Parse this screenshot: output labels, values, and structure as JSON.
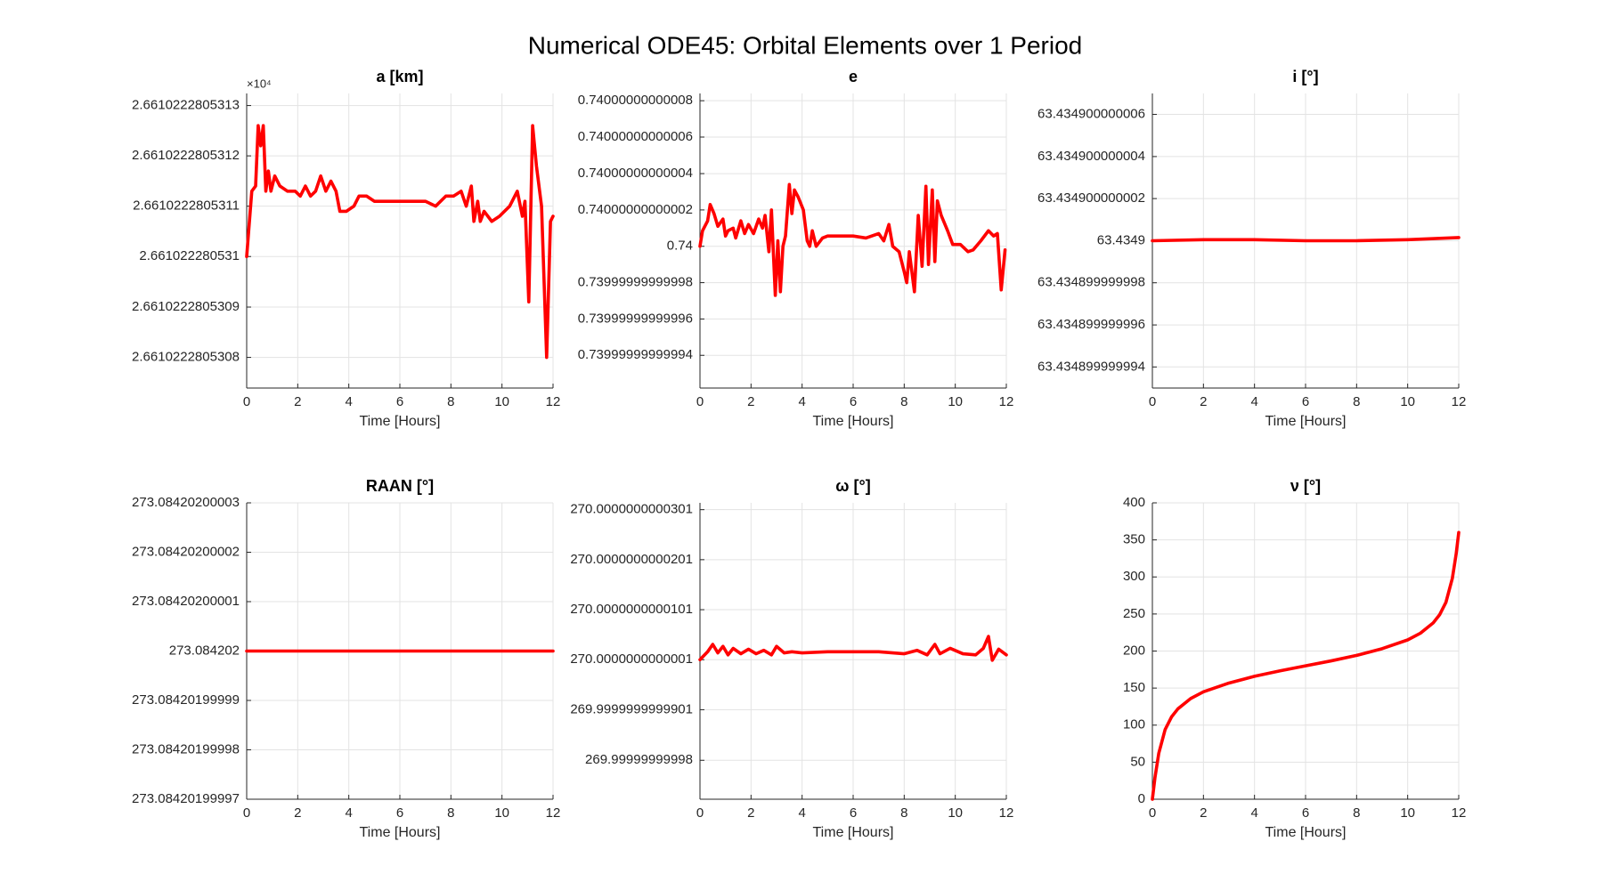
{
  "title": "Numerical ODE45: Orbital Elements over 1 Period",
  "chart_data": [
    {
      "type": "line",
      "title": "a [km]",
      "x_label": "Time [Hours]",
      "y_exponent": "×10⁴",
      "color": "#ff0000",
      "grid": true,
      "xlim": [
        0,
        12
      ],
      "xticks": [
        0,
        2,
        4,
        6,
        8,
        10,
        12
      ],
      "ylim": [
        2.661022280530739,
        2.661022280531324
      ],
      "yticks": [
        2.6610222805308,
        2.6610222805309,
        2.661022280531,
        2.6610222805311,
        2.6610222805312,
        2.6610222805313
      ],
      "x": [
        0,
        0.2,
        0.35,
        0.45,
        0.55,
        0.65,
        0.75,
        0.85,
        0.95,
        1.1,
        1.3,
        1.6,
        1.9,
        2.1,
        2.3,
        2.5,
        2.7,
        2.9,
        3.1,
        3.3,
        3.5,
        3.65,
        3.9,
        4.2,
        4.4,
        4.7,
        5,
        5.5,
        6,
        6.5,
        7,
        7.4,
        7.8,
        8.1,
        8.4,
        8.6,
        8.8,
        8.9,
        9.05,
        9.15,
        9.3,
        9.6,
        9.9,
        10.3,
        10.6,
        10.8,
        10.9,
        11.05,
        11.2,
        11.35,
        11.55,
        11.75,
        11.9,
        12
      ],
      "values": [
        2.661022280531,
        2.66102228053113,
        2.66102228053114,
        2.66102228053126,
        2.66102228053122,
        2.66102228053126,
        2.66102228053113,
        2.66102228053117,
        2.66102228053113,
        2.66102228053116,
        2.66102228053114,
        2.66102228053113,
        2.66102228053113,
        2.66102228053112,
        2.66102228053114,
        2.66102228053112,
        2.66102228053113,
        2.66102228053116,
        2.66102228053113,
        2.66102228053115,
        2.66102228053113,
        2.66102228053109,
        2.66102228053109,
        2.6610222805311,
        2.66102228053112,
        2.66102228053112,
        2.66102228053111,
        2.66102228053111,
        2.66102228053111,
        2.66102228053111,
        2.66102228053111,
        2.6610222805311,
        2.66102228053112,
        2.66102228053112,
        2.66102228053113,
        2.6610222805311,
        2.66102228053114,
        2.66102228053107,
        2.66102228053111,
        2.66102228053107,
        2.66102228053109,
        2.66102228053107,
        2.66102228053108,
        2.6610222805311,
        2.66102228053113,
        2.66102228053108,
        2.66102228053111,
        2.66102228053091,
        2.66102228053126,
        2.66102228053118,
        2.6610222805311,
        2.6610222805308,
        2.66102228053107,
        2.66102228053108
      ]
    },
    {
      "type": "line",
      "title": "e",
      "x_label": "Time [Hours]",
      "color": "#ff0000",
      "grid": true,
      "xlim": [
        0,
        12
      ],
      "xticks": [
        0,
        2,
        4,
        6,
        8,
        10,
        12
      ],
      "ylim": [
        0.739999999999922,
        0.740000000000084
      ],
      "yticks": [
        0.73999999999994,
        0.73999999999996,
        0.73999999999998,
        0.74,
        0.74000000000002,
        0.74000000000004,
        0.74000000000006,
        0.74000000000008
      ],
      "x": [
        0,
        0.1,
        0.3,
        0.4,
        0.55,
        0.7,
        0.9,
        1,
        1.1,
        1.3,
        1.4,
        1.6,
        1.75,
        1.9,
        2.1,
        2.3,
        2.45,
        2.55,
        2.7,
        2.8,
        2.95,
        3.05,
        3.15,
        3.25,
        3.35,
        3.5,
        3.6,
        3.7,
        3.85,
        4.05,
        4.2,
        4.3,
        4.4,
        4.55,
        4.8,
        5,
        5.5,
        6,
        6.5,
        7,
        7.2,
        7.4,
        7.55,
        7.8,
        8,
        8.1,
        8.2,
        8.4,
        8.55,
        8.7,
        8.85,
        8.95,
        9.1,
        9.2,
        9.3,
        9.45,
        9.7,
        9.9,
        10.2,
        10.5,
        10.7,
        11,
        11.3,
        11.5,
        11.65,
        11.8,
        11.95
      ],
      "values": [
        0.74,
        0.7400000000000085,
        0.740000000000014,
        0.740000000000023,
        0.740000000000018,
        0.740000000000011,
        0.740000000000015,
        0.7400000000000057,
        0.7400000000000085,
        0.74000000000001,
        0.7400000000000045,
        0.740000000000014,
        0.740000000000007,
        0.740000000000012,
        0.740000000000007,
        0.740000000000015,
        0.74000000000001,
        0.740000000000017,
        0.739999999999997,
        0.74000000000002,
        0.739999999999973,
        0.740000000000003,
        0.739999999999975,
        0.74,
        0.7400000000000057,
        0.740000000000034,
        0.740000000000018,
        0.740000000000031,
        0.740000000000027,
        0.74000000000002,
        0.740000000000003,
        0.74,
        0.7400000000000085,
        0.74,
        0.7400000000000045,
        0.7400000000000057,
        0.7400000000000057,
        0.7400000000000057,
        0.7400000000000045,
        0.740000000000007,
        0.740000000000003,
        0.740000000000012,
        0.74,
        0.739999999999997,
        0.739999999999986,
        0.73999999999998,
        0.739999999999997,
        0.739999999999975,
        0.740000000000017,
        0.739999999999989,
        0.740000000000033,
        0.73999999999999,
        0.740000000000031,
        0.7399999999999916,
        0.740000000000025,
        0.740000000000017,
        0.7400000000000085,
        0.740000000000001,
        0.740000000000001,
        0.739999999999997,
        0.739999999999998,
        0.740000000000003,
        0.7400000000000085,
        0.7400000000000057,
        0.740000000000007,
        0.739999999999976,
        0.739999999999998
      ]
    },
    {
      "type": "line",
      "title": "i [°]",
      "x_label": "Time [Hours]",
      "color": "#ff0000",
      "grid": true,
      "xlim": [
        0,
        12
      ],
      "xticks": [
        0,
        2,
        4,
        6,
        8,
        10,
        12
      ],
      "ylim": [
        63.434899999993,
        63.434900000007
      ],
      "yticks": [
        63.434899999994,
        63.434899999996,
        63.434899999998,
        63.4349,
        63.434900000002,
        63.434900000004,
        63.434900000006
      ],
      "x": [
        0,
        2,
        4,
        6,
        8,
        10,
        12
      ],
      "values": [
        63.4349,
        63.43490000000005,
        63.43490000000005,
        63.4349,
        63.4349,
        63.43490000000005,
        63.43490000000015
      ]
    },
    {
      "type": "line",
      "title": "RAAN [°]",
      "x_label": "Time [Hours]",
      "color": "#ff0000",
      "grid": true,
      "xlim": [
        0,
        12
      ],
      "xticks": [
        0,
        2,
        4,
        6,
        8,
        10,
        12
      ],
      "ylim": [
        273.08420199997,
        273.08420200003
      ],
      "yticks": [
        273.08420199997,
        273.08420199998,
        273.08420199999,
        273.084202,
        273.08420200001,
        273.08420200002,
        273.08420200003
      ],
      "x": [
        0,
        4,
        8,
        12
      ],
      "values": [
        273.084202,
        273.084202,
        273.084202,
        273.084202
      ]
    },
    {
      "type": "line",
      "title": "ω [°]",
      "x_label": "Time [Hours]",
      "color": "#ff0000",
      "grid": true,
      "xlim": [
        0,
        12
      ],
      "xticks": [
        0,
        2,
        4,
        6,
        8,
        10,
        12
      ],
      "ylim": [
        269.9999999999722,
        270.0000000000315
      ],
      "yticks": [
        269.99999999998,
        269.9999999999901,
        270.0000000000001,
        270.0000000000101,
        270.0000000000201,
        270.0000000000301
      ],
      "x": [
        0,
        0.3,
        0.5,
        0.7,
        0.9,
        1.1,
        1.3,
        1.6,
        1.9,
        2.2,
        2.5,
        2.8,
        3,
        3.3,
        3.6,
        4,
        5,
        6,
        7,
        8,
        8.5,
        8.9,
        9.2,
        9.4,
        9.8,
        10.3,
        10.8,
        11.1,
        11.3,
        11.45,
        11.7,
        12
      ],
      "values": [
        270.0000000000001,
        270.0000000000017,
        270.0000000000032,
        270.0000000000015,
        270.0000000000028,
        270.0000000000011,
        270.0000000000024,
        270.0000000000013,
        270.0000000000022,
        270.0000000000013,
        270.000000000002,
        270.0000000000011,
        270.0000000000028,
        270.0000000000015,
        270.0000000000017,
        270.0000000000015,
        270.0000000000017,
        270.0000000000017,
        270.0000000000017,
        270.0000000000013,
        270.000000000002,
        270.0000000000011,
        270.0000000000032,
        270.0000000000013,
        270.0000000000024,
        270.0000000000013,
        270.0000000000011,
        270.0000000000024,
        270.0000000000048,
        270,
        270.0000000000022,
        270.0000000000011
      ]
    },
    {
      "type": "line",
      "title": "ν [°]",
      "x_label": "Time [Hours]",
      "color": "#ff0000",
      "grid": true,
      "xlim": [
        0,
        12
      ],
      "xticks": [
        0,
        2,
        4,
        6,
        8,
        10,
        12
      ],
      "ylim": [
        0,
        400
      ],
      "yticks": [
        0,
        50,
        100,
        150,
        200,
        250,
        300,
        350,
        400
      ],
      "x": [
        0,
        0.1,
        0.25,
        0.5,
        0.75,
        1,
        1.5,
        2,
        3,
        4,
        5,
        6,
        7,
        8,
        9,
        10,
        10.5,
        11,
        11.25,
        11.5,
        11.75,
        11.9,
        12
      ],
      "values": [
        0,
        28.8,
        61.9,
        94.1,
        111.1,
        122,
        135.9,
        145,
        156.8,
        165.9,
        173.3,
        180,
        186.7,
        194.1,
        203.2,
        215,
        224.1,
        238,
        248.9,
        265.9,
        298.1,
        331.2,
        360
      ]
    }
  ]
}
